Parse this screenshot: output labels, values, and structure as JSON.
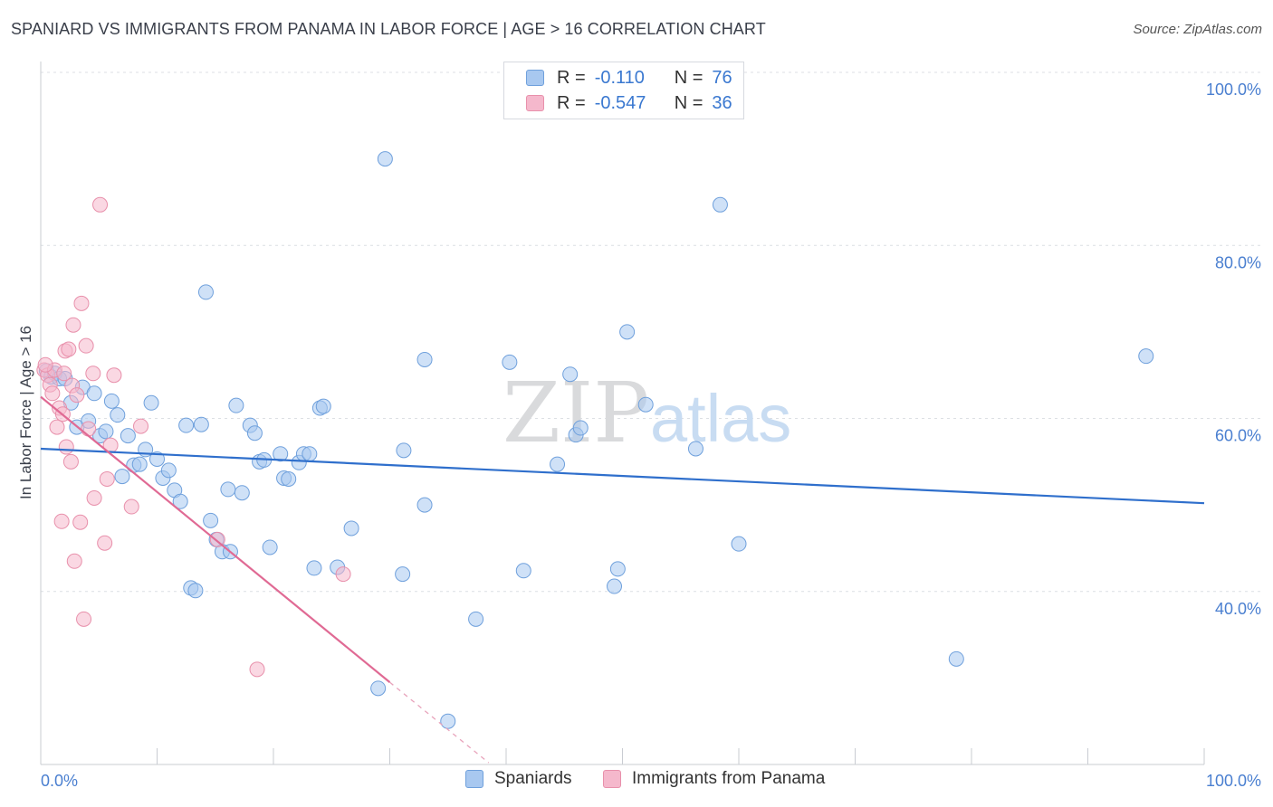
{
  "title": "SPANIARD VS IMMIGRANTS FROM PANAMA IN LABOR FORCE | AGE > 16 CORRELATION CHART",
  "source": "Source: ZipAtlas.com",
  "watermark": {
    "zip": "ZIP",
    "atlas": "atlas"
  },
  "legend": {
    "rows": [
      {
        "r_label": "R =",
        "r_value": "-0.110",
        "n_label": "N =",
        "n_value": "76",
        "color": "#a8c8f0"
      },
      {
        "r_label": "R =",
        "r_value": "-0.547",
        "n_label": "N =",
        "n_value": "36",
        "color": "#f5b8cc"
      }
    ]
  },
  "bottom_legend": {
    "series1": "Spaniards",
    "series2": "Immigrants from Panama"
  },
  "chart_data": {
    "type": "scatter",
    "ylabel": "In Labor Force | Age > 16",
    "xlabel": "",
    "xlim": [
      0,
      100
    ],
    "ylim": [
      20,
      100
    ],
    "x_tick_labels": [
      "0.0%",
      "100.0%"
    ],
    "y_ticks": [
      40,
      60,
      80,
      100
    ],
    "y_tick_labels": [
      "40.0%",
      "60.0%",
      "80.0%",
      "100.0%"
    ],
    "grid": true,
    "series": [
      {
        "name": "Spaniards",
        "color": "#6fa0dc",
        "fill": "#a8c8f0",
        "trend": {
          "x": [
            0,
            100
          ],
          "y": [
            56.5,
            50.2
          ]
        },
        "points": [
          [
            0.5,
            65.5
          ],
          [
            0.9,
            64.8
          ],
          [
            1.2,
            65.2
          ],
          [
            1.6,
            64.6
          ],
          [
            2.1,
            64.6
          ],
          [
            2.6,
            61.8
          ],
          [
            3.1,
            59.0
          ],
          [
            3.6,
            63.6
          ],
          [
            4.1,
            59.7
          ],
          [
            4.6,
            62.9
          ],
          [
            5.1,
            58.0
          ],
          [
            5.6,
            58.5
          ],
          [
            6.1,
            62.0
          ],
          [
            6.6,
            60.4
          ],
          [
            7.0,
            53.3
          ],
          [
            7.5,
            58.0
          ],
          [
            8.0,
            54.6
          ],
          [
            8.5,
            54.7
          ],
          [
            9.0,
            56.4
          ],
          [
            9.5,
            61.8
          ],
          [
            10.0,
            55.3
          ],
          [
            10.5,
            53.1
          ],
          [
            11.0,
            54.0
          ],
          [
            11.5,
            51.7
          ],
          [
            12.0,
            50.4
          ],
          [
            12.5,
            59.2
          ],
          [
            12.9,
            40.4
          ],
          [
            13.3,
            40.1
          ],
          [
            13.8,
            59.3
          ],
          [
            14.2,
            74.6
          ],
          [
            14.6,
            48.2
          ],
          [
            15.1,
            46.0
          ],
          [
            15.6,
            44.6
          ],
          [
            16.3,
            44.6
          ],
          [
            16.8,
            61.5
          ],
          [
            17.3,
            51.4
          ],
          [
            16.1,
            51.8
          ],
          [
            18.0,
            59.2
          ],
          [
            18.4,
            58.3
          ],
          [
            18.8,
            55.0
          ],
          [
            19.2,
            55.2
          ],
          [
            19.7,
            45.1
          ],
          [
            20.6,
            55.9
          ],
          [
            20.9,
            53.1
          ],
          [
            21.3,
            53.0
          ],
          [
            22.2,
            54.9
          ],
          [
            22.6,
            55.9
          ],
          [
            23.1,
            55.9
          ],
          [
            23.5,
            42.7
          ],
          [
            24.0,
            61.2
          ],
          [
            24.3,
            61.4
          ],
          [
            25.5,
            42.8
          ],
          [
            26.7,
            47.3
          ],
          [
            29.0,
            28.8
          ],
          [
            29.6,
            90.0
          ],
          [
            31.1,
            42.0
          ],
          [
            31.2,
            56.3
          ],
          [
            33.0,
            66.8
          ],
          [
            33.0,
            50.0
          ],
          [
            35.0,
            25.0
          ],
          [
            37.4,
            36.8
          ],
          [
            40.3,
            66.5
          ],
          [
            41.5,
            42.4
          ],
          [
            44.4,
            54.7
          ],
          [
            45.5,
            65.1
          ],
          [
            46.0,
            58.1
          ],
          [
            46.4,
            58.9
          ],
          [
            49.3,
            40.6
          ],
          [
            49.6,
            42.6
          ],
          [
            50.4,
            70.0
          ],
          [
            52.0,
            61.6
          ],
          [
            56.3,
            56.5
          ],
          [
            58.4,
            84.7
          ],
          [
            60.0,
            45.5
          ],
          [
            78.7,
            32.2
          ],
          [
            95.0,
            67.2
          ]
        ]
      },
      {
        "name": "Immigrants from Panama",
        "color": "#e890ab",
        "fill": "#f5b8cc",
        "trend_solid": {
          "x": [
            0,
            30
          ],
          "y": [
            62.5,
            29.5
          ]
        },
        "trend_dashed": {
          "x": [
            30,
            38.5
          ],
          "y": [
            29.5,
            20.2
          ]
        },
        "points": [
          [
            0.3,
            65.6
          ],
          [
            0.6,
            65.0
          ],
          [
            0.8,
            63.9
          ],
          [
            1.0,
            62.9
          ],
          [
            1.2,
            65.6
          ],
          [
            1.4,
            59.0
          ],
          [
            1.6,
            61.2
          ],
          [
            1.8,
            48.1
          ],
          [
            2.0,
            65.2
          ],
          [
            2.1,
            67.8
          ],
          [
            2.2,
            56.7
          ],
          [
            2.4,
            68.0
          ],
          [
            2.6,
            55.0
          ],
          [
            2.7,
            63.8
          ],
          [
            2.8,
            70.8
          ],
          [
            2.9,
            43.5
          ],
          [
            3.1,
            62.7
          ],
          [
            3.4,
            48.0
          ],
          [
            3.5,
            73.3
          ],
          [
            3.7,
            36.8
          ],
          [
            3.9,
            68.4
          ],
          [
            4.1,
            58.8
          ],
          [
            4.5,
            65.2
          ],
          [
            4.6,
            50.8
          ],
          [
            5.1,
            84.7
          ],
          [
            5.5,
            45.6
          ],
          [
            5.7,
            53.0
          ],
          [
            6.0,
            56.9
          ],
          [
            6.3,
            65.0
          ],
          [
            7.8,
            49.8
          ],
          [
            8.6,
            59.1
          ],
          [
            15.2,
            46.0
          ],
          [
            18.6,
            31.0
          ],
          [
            26.0,
            42.0
          ],
          [
            1.9,
            60.5
          ],
          [
            0.4,
            66.2
          ]
        ]
      }
    ]
  }
}
